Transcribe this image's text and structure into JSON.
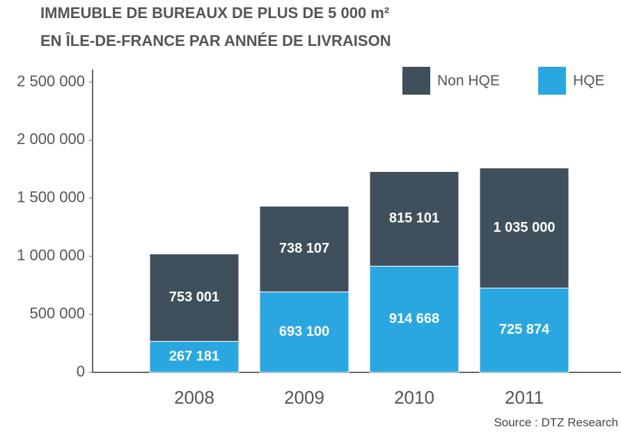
{
  "chart_data": {
    "type": "stacked_bar",
    "title": "IMMEUBLE DE BUREAUX DE PLUS DE 5 000 m²",
    "subtitle": "EN ÎLE-DE-FRANCE PAR ANNÉE DE LIVRAISON",
    "source": "Source : DTZ Research",
    "categories": [
      "2008",
      "2009",
      "2010",
      "2011"
    ],
    "series": [
      {
        "name": "Non HQE",
        "color": "#3f505c",
        "values": [
          753001,
          738107,
          815101,
          1035000
        ],
        "value_labels": [
          "753 001",
          "738 107",
          "815 101",
          "1 035 000"
        ]
      },
      {
        "name": "HQE",
        "color": "#2aa7e0",
        "values": [
          267181,
          693100,
          914668,
          725874
        ],
        "value_labels": [
          "267 181",
          "693 100",
          "914 668",
          "725 874"
        ]
      }
    ],
    "ylim": [
      0,
      2500000
    ],
    "yticks": [
      0,
      {
        "value": 500000,
        "label": "500 000"
      },
      {
        "value": 1000000,
        "label": "1 000 000"
      },
      {
        "value": 1500000,
        "label": "1 500 000"
      },
      {
        "value": 2000000,
        "label": "2 000 000"
      },
      {
        "value": 2500000,
        "label": "2 500 000"
      }
    ],
    "legend": "top-right"
  }
}
